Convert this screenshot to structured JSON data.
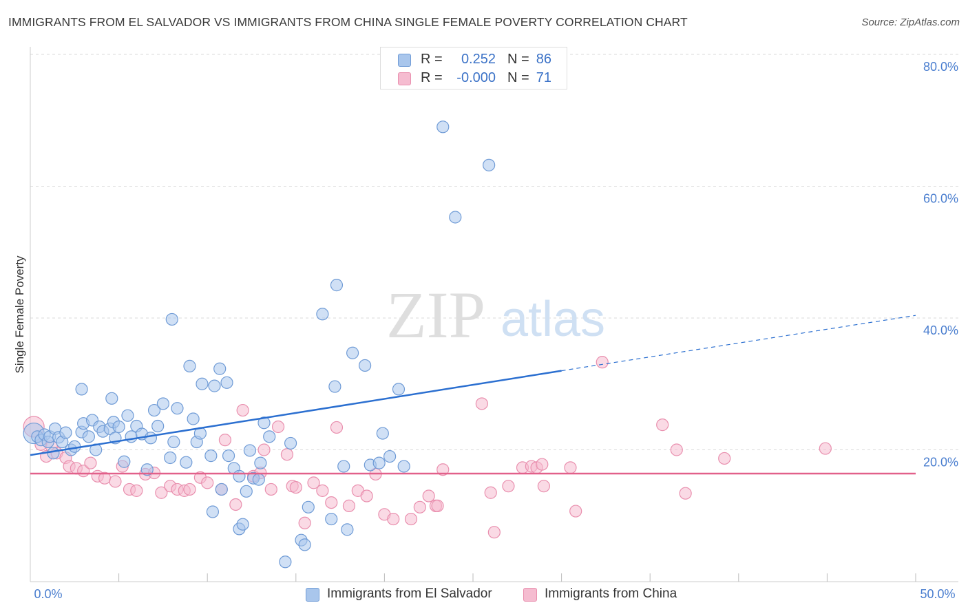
{
  "title": "IMMIGRANTS FROM EL SALVADOR VS IMMIGRANTS FROM CHINA SINGLE FEMALE POVERTY CORRELATION CHART",
  "source": "Source: ZipAtlas.com",
  "watermark": {
    "zip": "ZIP",
    "atlas": "atlas"
  },
  "colors": {
    "blue_fill": "#a9c6ec",
    "blue_stroke": "#6f9bd6",
    "blue_line": "#2b6fd0",
    "pink_fill": "#f5bcd0",
    "pink_stroke": "#e98fae",
    "pink_line": "#e2608a",
    "tick_text": "#4a7ecf",
    "grid": "#d8d8d8"
  },
  "legend": {
    "rows": [
      {
        "label": "R =",
        "r_value": "0.252",
        "n_label": "N =",
        "n_value": "86",
        "color": "blue"
      },
      {
        "label": "R =",
        "r_value": "-0.000",
        "n_label": "N =",
        "n_value": "71",
        "color": "pink"
      }
    ]
  },
  "bottom_legend": [
    {
      "label": "Immigrants from El Salvador",
      "color": "blue"
    },
    {
      "label": "Immigrants from China",
      "color": "pink"
    }
  ],
  "chart_data": {
    "type": "scatter",
    "title": "IMMIGRANTS FROM EL SALVADOR VS IMMIGRANTS FROM CHINA SINGLE FEMALE POVERTY CORRELATION CHART",
    "xlabel": "",
    "ylabel": "Single Female Poverty",
    "xlim": [
      0,
      50
    ],
    "ylim": [
      0,
      80
    ],
    "x_tick_labels": [
      "0.0%",
      "50.0%"
    ],
    "y_ticks": [
      20,
      40,
      60,
      80
    ],
    "y_tick_labels": [
      "20.0%",
      "40.0%",
      "60.0%",
      "80.0%"
    ],
    "grid": true,
    "legend_position": "top-center",
    "series": [
      {
        "name": "Immigrants from El Salvador",
        "color": "blue",
        "R": 0.252,
        "N": 86,
        "trend": {
          "x0": 0,
          "y0": 19.2,
          "x1": 30,
          "y1": 32.0,
          "dashed_to_x": 50,
          "dashed_to_y": 40.4
        },
        "points": [
          [
            0.2,
            22.5
          ],
          [
            0.4,
            22.0
          ],
          [
            0.6,
            21.5
          ],
          [
            0.8,
            22.3
          ],
          [
            1.0,
            21.2
          ],
          [
            1.1,
            22.0
          ],
          [
            1.3,
            19.5
          ],
          [
            1.4,
            23.2
          ],
          [
            1.6,
            21.9
          ],
          [
            1.8,
            21.2
          ],
          [
            2.0,
            22.6
          ],
          [
            2.3,
            20.0
          ],
          [
            2.5,
            20.5
          ],
          [
            2.9,
            22.7
          ],
          [
            3.0,
            24.0
          ],
          [
            3.3,
            22.0
          ],
          [
            3.5,
            24.5
          ],
          [
            3.7,
            20.0
          ],
          [
            3.9,
            23.5
          ],
          [
            4.1,
            22.8
          ],
          [
            4.5,
            23.2
          ],
          [
            4.7,
            24.2
          ],
          [
            4.8,
            21.8
          ],
          [
            5.0,
            23.5
          ],
          [
            5.3,
            18.2
          ],
          [
            5.5,
            25.2
          ],
          [
            5.7,
            22.0
          ],
          [
            6.0,
            23.6
          ],
          [
            6.3,
            22.4
          ],
          [
            6.6,
            17.0
          ],
          [
            6.8,
            21.8
          ],
          [
            7.0,
            26.0
          ],
          [
            7.2,
            23.6
          ],
          [
            7.5,
            27.0
          ],
          [
            7.9,
            18.8
          ],
          [
            8.1,
            21.2
          ],
          [
            8.3,
            26.3
          ],
          [
            8.8,
            18.1
          ],
          [
            9.2,
            24.7
          ],
          [
            9.4,
            21.2
          ],
          [
            9.6,
            22.5
          ],
          [
            10.2,
            19.1
          ],
          [
            10.8,
            14.0
          ],
          [
            11.2,
            19.1
          ],
          [
            11.5,
            17.2
          ],
          [
            11.8,
            16.0
          ],
          [
            12.4,
            19.9
          ],
          [
            12.6,
            15.7
          ],
          [
            13.0,
            18.0
          ],
          [
            13.2,
            24.1
          ],
          [
            13.5,
            22.0
          ],
          [
            14.7,
            21.0
          ],
          [
            15.3,
            6.3
          ],
          [
            15.5,
            5.6
          ],
          [
            15.7,
            11.3
          ],
          [
            16.5,
            40.6
          ],
          [
            17.0,
            9.5
          ],
          [
            17.3,
            45.0
          ],
          [
            17.7,
            17.5
          ],
          [
            17.2,
            29.6
          ],
          [
            17.9,
            7.9
          ],
          [
            18.2,
            34.7
          ],
          [
            18.9,
            32.8
          ],
          [
            19.2,
            17.7
          ],
          [
            19.7,
            18.0
          ],
          [
            19.9,
            22.5
          ],
          [
            20.3,
            19.0
          ],
          [
            20.8,
            29.2
          ],
          [
            21.1,
            17.5
          ],
          [
            23.3,
            69.0
          ],
          [
            24.0,
            55.3
          ],
          [
            25.9,
            63.2
          ],
          [
            8.0,
            39.8
          ],
          [
            9.0,
            32.7
          ],
          [
            9.7,
            30.0
          ],
          [
            10.4,
            29.7
          ],
          [
            10.7,
            32.3
          ],
          [
            11.1,
            30.2
          ],
          [
            4.6,
            27.8
          ],
          [
            2.9,
            29.2
          ],
          [
            11.8,
            8.0
          ],
          [
            12.0,
            8.7
          ],
          [
            12.2,
            13.7
          ],
          [
            14.4,
            3.0
          ],
          [
            10.3,
            10.6
          ],
          [
            12.9,
            15.5
          ]
        ]
      },
      {
        "name": "Immigrants from China",
        "color": "pink",
        "R": -0.0,
        "N": 71,
        "trend": {
          "x0": 0,
          "y0": 16.4,
          "x1": 50,
          "y1": 16.4
        },
        "points": [
          [
            0.2,
            23.5
          ],
          [
            0.6,
            20.8
          ],
          [
            0.9,
            19.0
          ],
          [
            1.2,
            20.5
          ],
          [
            1.5,
            19.5
          ],
          [
            2.0,
            18.8
          ],
          [
            2.2,
            17.5
          ],
          [
            2.6,
            17.2
          ],
          [
            3.0,
            16.8
          ],
          [
            3.4,
            18.0
          ],
          [
            3.8,
            16.0
          ],
          [
            4.2,
            15.7
          ],
          [
            4.8,
            15.2
          ],
          [
            5.2,
            17.5
          ],
          [
            5.6,
            14.0
          ],
          [
            6.0,
            13.8
          ],
          [
            6.5,
            16.3
          ],
          [
            7.0,
            16.5
          ],
          [
            7.4,
            13.5
          ],
          [
            7.9,
            14.5
          ],
          [
            8.3,
            14.0
          ],
          [
            8.7,
            13.8
          ],
          [
            9.0,
            14.0
          ],
          [
            9.6,
            15.8
          ],
          [
            10.0,
            15.0
          ],
          [
            10.8,
            14.0
          ],
          [
            11.0,
            21.5
          ],
          [
            11.6,
            11.7
          ],
          [
            12.0,
            26.0
          ],
          [
            12.6,
            16.0
          ],
          [
            13.0,
            16.5
          ],
          [
            13.2,
            20.0
          ],
          [
            13.6,
            14.0
          ],
          [
            14.0,
            23.5
          ],
          [
            14.5,
            19.3
          ],
          [
            14.8,
            14.5
          ],
          [
            15.0,
            14.3
          ],
          [
            15.5,
            8.9
          ],
          [
            16.0,
            15.0
          ],
          [
            16.5,
            13.8
          ],
          [
            17.0,
            12.0
          ],
          [
            17.3,
            23.4
          ],
          [
            18.0,
            11.5
          ],
          [
            18.5,
            13.8
          ],
          [
            19.0,
            13.0
          ],
          [
            19.5,
            16.3
          ],
          [
            20.0,
            10.2
          ],
          [
            20.5,
            9.5
          ],
          [
            21.5,
            9.5
          ],
          [
            22.0,
            11.3
          ],
          [
            22.5,
            13.0
          ],
          [
            22.9,
            11.5
          ],
          [
            23.0,
            11.5
          ],
          [
            23.3,
            17.0
          ],
          [
            25.5,
            27.0
          ],
          [
            26.0,
            13.5
          ],
          [
            26.2,
            7.5
          ],
          [
            27.0,
            14.5
          ],
          [
            27.8,
            17.3
          ],
          [
            28.3,
            17.5
          ],
          [
            28.6,
            17.3
          ],
          [
            28.9,
            17.8
          ],
          [
            29.0,
            14.5
          ],
          [
            30.5,
            17.3
          ],
          [
            30.8,
            10.7
          ],
          [
            32.3,
            33.3
          ],
          [
            35.7,
            23.8
          ],
          [
            36.5,
            20.0
          ],
          [
            37.0,
            13.4
          ],
          [
            39.2,
            18.7
          ],
          [
            44.9,
            20.2
          ]
        ]
      }
    ]
  }
}
